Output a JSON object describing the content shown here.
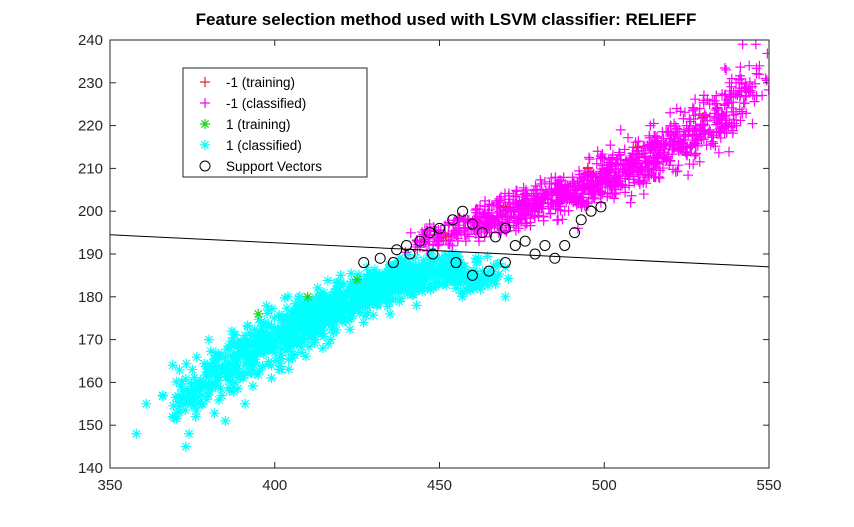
{
  "chart_data": {
    "type": "scatter",
    "title": "Feature selection method used with LSVM classifier: RELIEFF",
    "xlabel": "",
    "ylabel": "",
    "xlim": [
      350,
      550
    ],
    "ylim": [
      140,
      240
    ],
    "x_ticks": [
      350,
      400,
      450,
      500,
      550
    ],
    "y_ticks": [
      140,
      150,
      160,
      170,
      180,
      190,
      200,
      210,
      220,
      230,
      240
    ],
    "x_tick_labels": [
      "350",
      "400",
      "450",
      "500",
      "550"
    ],
    "y_tick_labels": [
      "140",
      "150",
      "160",
      "170",
      "180",
      "190",
      "200",
      "210",
      "220",
      "230",
      "240"
    ],
    "grid": false,
    "legend_position": "top-left",
    "decision_boundary": {
      "x": [
        350,
        550
      ],
      "y": [
        194.5,
        187
      ]
    },
    "series": [
      {
        "name": "-1 (training)",
        "marker": "plus",
        "color": "#e8262a",
        "points": [
          [
            452,
            194
          ],
          [
            470,
            201
          ],
          [
            495,
            210
          ],
          [
            510,
            215
          ],
          [
            530,
            222
          ]
        ]
      },
      {
        "name": "-1 (classified)",
        "marker": "plus",
        "color": "#ff00ff",
        "points": [
          [
            542,
            239
          ],
          [
            546,
            239
          ],
          [
            549,
            231
          ],
          [
            540,
            230
          ],
          [
            537,
            233
          ],
          [
            520,
            223
          ],
          [
            525,
            220
          ],
          [
            516,
            213
          ],
          [
            527,
            211
          ],
          [
            510,
            214
          ],
          [
            504,
            212
          ],
          [
            500,
            208
          ],
          [
            505,
            207
          ],
          [
            496,
            204
          ],
          [
            491,
            204
          ],
          [
            487,
            203
          ],
          [
            481,
            202
          ],
          [
            475,
            198
          ],
          [
            470,
            200
          ],
          [
            466,
            197
          ],
          [
            461,
            198
          ],
          [
            455,
            195
          ],
          [
            452,
            193
          ],
          [
            444,
            193
          ],
          [
            447,
            197
          ],
          [
            458,
            193
          ],
          [
            468,
            195
          ],
          [
            480,
            199
          ],
          [
            486,
            198
          ],
          [
            492,
            196
          ],
          [
            499,
            202
          ],
          [
            505,
            206
          ],
          [
            512,
            204
          ],
          [
            518,
            217
          ],
          [
            529,
            224
          ],
          [
            532,
            225
          ],
          [
            534,
            227
          ],
          [
            538,
            230
          ],
          [
            543,
            228
          ],
          [
            547,
            232
          ],
          [
            544,
            234
          ],
          [
            537,
            226
          ],
          [
            522,
            218
          ],
          [
            515,
            211
          ],
          [
            508,
            209
          ],
          [
            498,
            205
          ],
          [
            488,
            200
          ],
          [
            479,
            203
          ],
          [
            462,
            193
          ],
          [
            456,
            196
          ],
          [
            498,
            214
          ],
          [
            505,
            219
          ],
          [
            514,
            220
          ],
          [
            522,
            224
          ],
          [
            528,
            218
          ],
          [
            532,
            219
          ],
          [
            515,
            208
          ],
          [
            508,
            202
          ],
          [
            503,
            203
          ],
          [
            524,
            215
          ],
          [
            510,
            211
          ],
          [
            496,
            209
          ],
          [
            486,
            202
          ],
          [
            476,
            201
          ],
          [
            474,
            196
          ]
        ],
        "clusters": [
          [
            449,
            194,
            6,
            2,
            60
          ],
          [
            462,
            197,
            8,
            2.5,
            120
          ],
          [
            477,
            201,
            10,
            3,
            180
          ],
          [
            492,
            205,
            10,
            3,
            200
          ],
          [
            507,
            210,
            10,
            3.5,
            200
          ],
          [
            521,
            216,
            9,
            3.5,
            160
          ],
          [
            534,
            222,
            7,
            4,
            100
          ],
          [
            542,
            229,
            5,
            4,
            40
          ]
        ]
      },
      {
        "name": "1 (training)",
        "marker": "star",
        "color": "#1ed31e",
        "points": [
          [
            395,
            176
          ],
          [
            410,
            180
          ],
          [
            425,
            184
          ]
        ]
      },
      {
        "name": "1 (classified)",
        "marker": "star",
        "color": "#00ffff",
        "points": [
          [
            358,
            148
          ],
          [
            361,
            155
          ],
          [
            369,
            164
          ],
          [
            375,
            163
          ],
          [
            372,
            158
          ],
          [
            373,
            145
          ],
          [
            369,
            152
          ],
          [
            366,
            157
          ],
          [
            378,
            155
          ],
          [
            381,
            160
          ],
          [
            387,
            172
          ],
          [
            394,
            169
          ],
          [
            388,
            160
          ],
          [
            392,
            166
          ],
          [
            399,
            173
          ],
          [
            405,
            176
          ],
          [
            412,
            179
          ],
          [
            418,
            181
          ],
          [
            423,
            183
          ],
          [
            429,
            185
          ],
          [
            435,
            187
          ],
          [
            441,
            188
          ],
          [
            447,
            190
          ],
          [
            452,
            187
          ],
          [
            459,
            186
          ],
          [
            465,
            186
          ],
          [
            470,
            180
          ],
          [
            467,
            183
          ],
          [
            455,
            182
          ],
          [
            443,
            178
          ],
          [
            435,
            176
          ],
          [
            427,
            174
          ],
          [
            417,
            170
          ],
          [
            408,
            167
          ],
          [
            399,
            161
          ],
          [
            391,
            155
          ],
          [
            385,
            151
          ],
          [
            383,
            166
          ],
          [
            380,
            170
          ],
          [
            397,
            174
          ],
          [
            404,
            180
          ],
          [
            413,
            176
          ],
          [
            420,
            185
          ],
          [
            432,
            182
          ],
          [
            438,
            184
          ],
          [
            448,
            186
          ],
          [
            456,
            184
          ],
          [
            462,
            183
          ],
          [
            402,
            163
          ],
          [
            410,
            170
          ],
          [
            376,
            152
          ],
          [
            371,
            153
          ],
          [
            374,
            148
          ],
          [
            386,
            162
          ],
          [
            393,
            163
          ],
          [
            426,
            180
          ],
          [
            446,
            184
          ],
          [
            451,
            183
          ],
          [
            461,
            189
          ],
          [
            416,
            175
          ]
        ],
        "clusters": [
          [
            374,
            156,
            6,
            3,
            50
          ],
          [
            384,
            162,
            8,
            3,
            90
          ],
          [
            395,
            168,
            9,
            3.5,
            150
          ],
          [
            407,
            173,
            9,
            3.5,
            180
          ],
          [
            419,
            178,
            9,
            3.5,
            200
          ],
          [
            431,
            182,
            8,
            3,
            180
          ],
          [
            442,
            185,
            8,
            3,
            140
          ],
          [
            453,
            186,
            7,
            2.5,
            100
          ],
          [
            462,
            185,
            5,
            2.5,
            50
          ]
        ]
      },
      {
        "name": "Support Vectors",
        "marker": "circle",
        "color": "#000000",
        "points": [
          [
            427,
            188
          ],
          [
            432,
            189
          ],
          [
            437,
            191
          ],
          [
            440,
            192
          ],
          [
            444,
            193
          ],
          [
            447,
            195
          ],
          [
            450,
            196
          ],
          [
            454,
            198
          ],
          [
            457,
            200
          ],
          [
            460,
            197
          ],
          [
            463,
            195
          ],
          [
            467,
            194
          ],
          [
            470,
            196
          ],
          [
            473,
            192
          ],
          [
            476,
            193
          ],
          [
            479,
            190
          ],
          [
            482,
            192
          ],
          [
            485,
            189
          ],
          [
            488,
            192
          ],
          [
            491,
            195
          ],
          [
            493,
            198
          ],
          [
            496,
            200
          ],
          [
            499,
            201
          ],
          [
            460,
            185
          ],
          [
            465,
            186
          ],
          [
            470,
            188
          ],
          [
            455,
            188
          ],
          [
            448,
            190
          ],
          [
            441,
            190
          ],
          [
            436,
            188
          ]
        ]
      }
    ]
  }
}
